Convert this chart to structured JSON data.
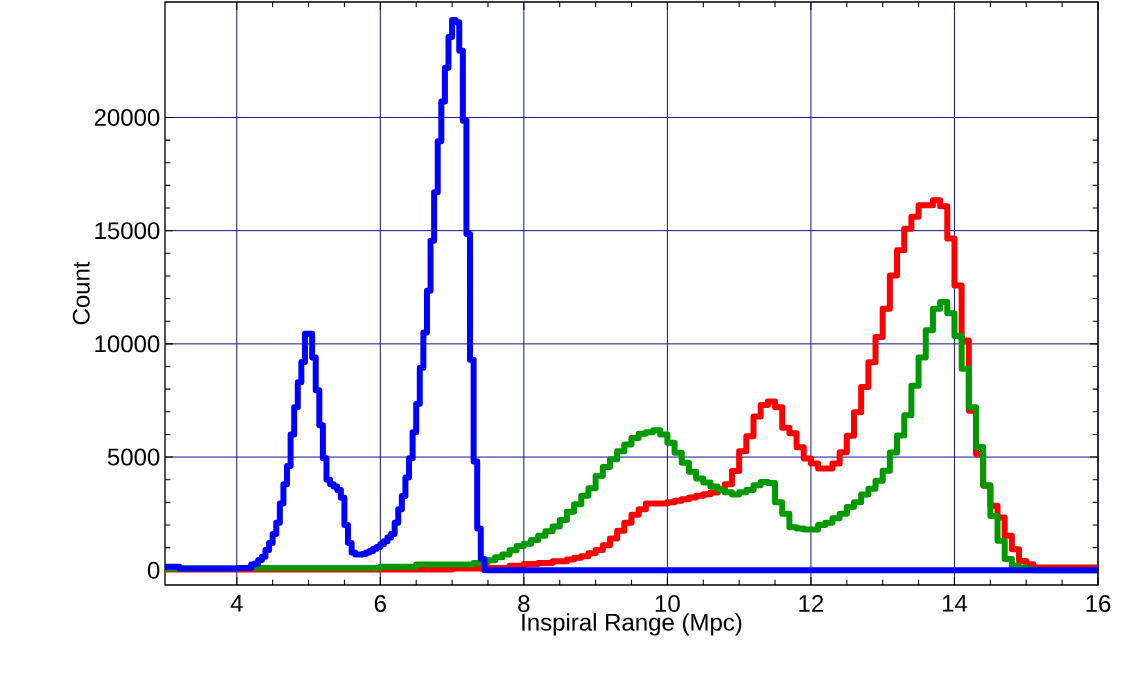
{
  "chart_data": {
    "type": "step",
    "xlabel": "Inspiral Range (Mpc)",
    "ylabel": "Count",
    "xlim": [
      3,
      16
    ],
    "ylim": [
      -650,
      25100
    ],
    "xticks": [
      4,
      6,
      8,
      10,
      12,
      14,
      16
    ],
    "yticks": [
      0,
      5000,
      10000,
      15000,
      20000
    ],
    "grid": true,
    "line_style": "solid",
    "marker": "none",
    "series": [
      {
        "color": "#ff0000",
        "x": [
          3.0,
          7.0,
          7.5,
          7.8,
          8.0,
          8.2,
          8.4,
          8.6,
          8.7,
          8.8,
          8.9,
          9.0,
          9.1,
          9.2,
          9.3,
          9.4,
          9.5,
          9.6,
          9.7,
          9.8,
          10.0,
          10.1,
          10.2,
          10.3,
          10.4,
          10.5,
          10.6,
          10.7,
          10.8,
          10.9,
          11.0,
          11.1,
          11.2,
          11.3,
          11.4,
          11.5,
          11.6,
          11.7,
          11.8,
          11.9,
          12.0,
          12.1,
          12.2,
          12.3,
          12.4,
          12.5,
          12.6,
          12.7,
          12.8,
          12.9,
          13.0,
          13.1,
          13.2,
          13.3,
          13.4,
          13.5,
          13.6,
          13.7,
          13.8,
          13.9,
          14.0,
          14.1,
          14.2,
          14.3,
          14.4,
          14.5,
          14.6,
          14.7,
          14.8,
          14.9,
          15.0,
          15.1,
          16.0
        ],
        "values": [
          30,
          80,
          100,
          200,
          280,
          320,
          400,
          480,
          550,
          620,
          750,
          900,
          1100,
          1400,
          1750,
          2100,
          2450,
          2700,
          2950,
          2950,
          3000,
          3070,
          3140,
          3210,
          3290,
          3360,
          3430,
          3580,
          3800,
          4380,
          5260,
          5920,
          6790,
          7300,
          7450,
          7200,
          6300,
          6050,
          5430,
          4940,
          4720,
          4500,
          4500,
          4720,
          5210,
          5940,
          6980,
          8090,
          9190,
          10300,
          11550,
          13020,
          14130,
          15090,
          15610,
          16120,
          16120,
          16340,
          16080,
          14650,
          12580,
          10150,
          7050,
          5130,
          3730,
          2850,
          2330,
          1520,
          930,
          410,
          270,
          120,
          0
        ]
      },
      {
        "color": "#009900",
        "x": [
          3.0,
          4.0,
          5.0,
          6.0,
          6.5,
          7.0,
          7.3,
          7.4,
          7.5,
          7.6,
          7.7,
          7.8,
          7.9,
          8.0,
          8.1,
          8.2,
          8.3,
          8.4,
          8.5,
          8.6,
          8.7,
          8.8,
          8.9,
          9.0,
          9.1,
          9.2,
          9.3,
          9.4,
          9.5,
          9.6,
          9.7,
          9.8,
          9.9,
          10.0,
          10.1,
          10.2,
          10.3,
          10.4,
          10.5,
          10.6,
          10.7,
          10.8,
          10.9,
          11.0,
          11.1,
          11.2,
          11.3,
          11.4,
          11.5,
          11.6,
          11.7,
          11.8,
          11.9,
          12.0,
          12.1,
          12.2,
          12.3,
          12.4,
          12.5,
          12.6,
          12.7,
          12.8,
          12.9,
          13.0,
          13.1,
          13.2,
          13.3,
          13.4,
          13.5,
          13.6,
          13.7,
          13.8,
          13.9,
          14.0,
          14.1,
          14.2,
          14.3,
          14.4,
          14.5,
          14.6,
          14.7,
          14.8,
          14.9,
          15.0,
          15.1,
          16.0
        ],
        "values": [
          80,
          100,
          100,
          150,
          250,
          250,
          320,
          365,
          440,
          580,
          700,
          880,
          1070,
          1170,
          1340,
          1530,
          1720,
          1930,
          2220,
          2590,
          2920,
          3290,
          3620,
          4160,
          4560,
          4900,
          5260,
          5550,
          5840,
          6030,
          6100,
          6180,
          6000,
          5630,
          5190,
          4750,
          4350,
          4050,
          3880,
          3700,
          3550,
          3450,
          3350,
          3450,
          3550,
          3750,
          3900,
          3850,
          3000,
          2500,
          1900,
          1850,
          1800,
          1800,
          2000,
          2100,
          2300,
          2500,
          2800,
          3000,
          3350,
          3600,
          3950,
          4400,
          5200,
          5950,
          6850,
          8150,
          9400,
          10600,
          11550,
          11850,
          11350,
          10350,
          8900,
          7200,
          5450,
          3750,
          2400,
          1300,
          500,
          200,
          120,
          50,
          0,
          0
        ]
      },
      {
        "color": "#0000ff",
        "x": [
          3.0,
          3.2,
          4.0,
          4.2,
          4.25,
          4.3,
          4.35,
          4.4,
          4.45,
          4.5,
          4.55,
          4.6,
          4.65,
          4.7,
          4.75,
          4.8,
          4.85,
          4.9,
          4.95,
          5.0,
          5.05,
          5.1,
          5.15,
          5.2,
          5.25,
          5.3,
          5.35,
          5.4,
          5.45,
          5.5,
          5.55,
          5.6,
          5.65,
          5.7,
          5.75,
          5.8,
          5.85,
          5.9,
          5.95,
          6.0,
          6.05,
          6.1,
          6.15,
          6.2,
          6.25,
          6.3,
          6.35,
          6.4,
          6.45,
          6.5,
          6.55,
          6.6,
          6.65,
          6.7,
          6.75,
          6.8,
          6.85,
          6.9,
          6.95,
          7.0,
          7.05,
          7.1,
          7.15,
          7.2,
          7.25,
          7.3,
          7.35,
          7.4,
          7.45,
          16.0
        ],
        "values": [
          150,
          80,
          100,
          250,
          300,
          450,
          600,
          900,
          1200,
          1600,
          2100,
          2950,
          3800,
          4600,
          6000,
          7200,
          8300,
          9200,
          10450,
          10450,
          9400,
          7950,
          6400,
          4950,
          4000,
          3800,
          3700,
          3550,
          3200,
          2000,
          1200,
          780,
          700,
          700,
          720,
          780,
          850,
          950,
          1030,
          1150,
          1280,
          1450,
          1600,
          2100,
          2700,
          3280,
          4100,
          4950,
          6100,
          7350,
          8950,
          10500,
          12350,
          14550,
          16700,
          18950,
          20700,
          22200,
          23550,
          24300,
          24200,
          22950,
          19850,
          14850,
          9300,
          4800,
          1850,
          500,
          0,
          0
        ]
      }
    ]
  }
}
